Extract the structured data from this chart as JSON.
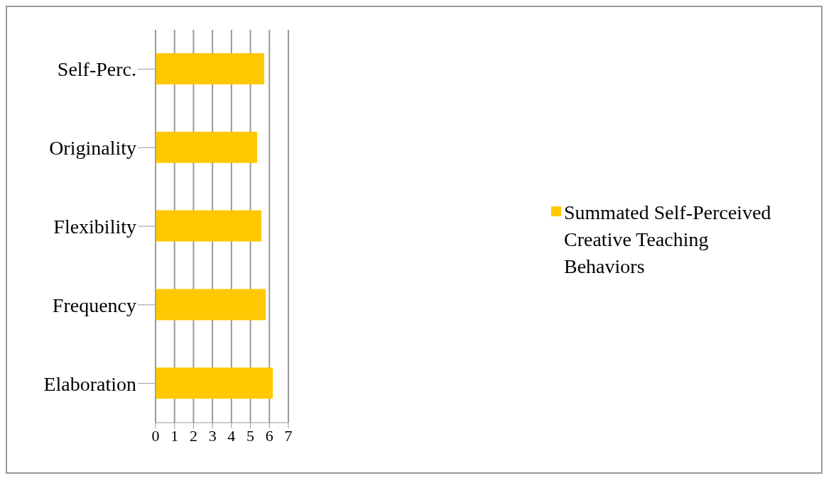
{
  "chart_data": {
    "type": "bar",
    "orientation": "horizontal",
    "categories": [
      "Self-Perc.",
      "Originality",
      "Flexibility",
      "Frequency",
      "Elaboration"
    ],
    "series": [
      {
        "name": "Summated Self-Perceived Creative Teaching Behaviors",
        "color": "#ffc800",
        "values": [
          5.73,
          5.35,
          5.58,
          5.81,
          6.18
        ]
      }
    ],
    "xlim": [
      0,
      7
    ],
    "xticks": [
      0,
      1,
      2,
      3,
      4,
      5,
      6,
      7
    ],
    "grid": "x",
    "legend": "right"
  }
}
